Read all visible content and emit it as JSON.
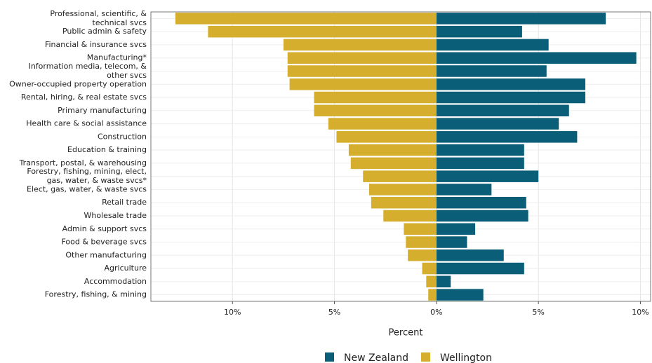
{
  "chart_data": {
    "type": "diverging-bar",
    "categories": [
      "Professional, scientific, &\ntechnical svcs",
      "Public admin & safety",
      "Financial & insurance svcs",
      "Manufacturing*",
      "Information media, telecom, &\nother svcs",
      "Owner-occupied property operation",
      "Rental, hiring, & real estate svcs",
      "Primary manufacturing",
      "Health care & social assistance",
      "Construction",
      "Education & training",
      "Transport, postal, & warehousing",
      "Forestry, fishing, mining, elect,\ngas, water, & waste svcs*",
      "Elect, gas, water, & waste svcs",
      "Retail trade",
      "Wholesale trade",
      "Admin & support svcs",
      "Food & beverage svcs",
      "Other manufacturing",
      "Agriculture",
      "Accommodation",
      "Forestry, fishing, & mining"
    ],
    "series": [
      {
        "name": "New Zealand",
        "color": "#0b5e78",
        "values": [
          8.3,
          4.2,
          5.5,
          9.8,
          5.4,
          7.3,
          7.3,
          6.5,
          6.0,
          6.9,
          4.3,
          4.3,
          5.0,
          2.7,
          4.4,
          4.5,
          1.9,
          1.5,
          3.3,
          4.3,
          0.7,
          2.3
        ]
      },
      {
        "name": "Wellington",
        "color": "#d4ae2c",
        "values": [
          -12.8,
          -11.2,
          -7.5,
          -7.3,
          -7.3,
          -7.2,
          -6.0,
          -6.0,
          -5.3,
          -4.9,
          -4.3,
          -4.2,
          -3.6,
          -3.3,
          -3.2,
          -2.6,
          -1.6,
          -1.5,
          -1.4,
          -0.7,
          -0.5,
          -0.4
        ]
      }
    ],
    "xlabel": "Percent",
    "xlim": [
      -14,
      10.5
    ],
    "xticks": [
      {
        "value": -10,
        "label": "10%"
      },
      {
        "value": -5,
        "label": "5%"
      },
      {
        "value": 0,
        "label": "0%"
      },
      {
        "value": 5,
        "label": "5%"
      },
      {
        "value": 10,
        "label": "10%"
      }
    ],
    "grid": true
  }
}
